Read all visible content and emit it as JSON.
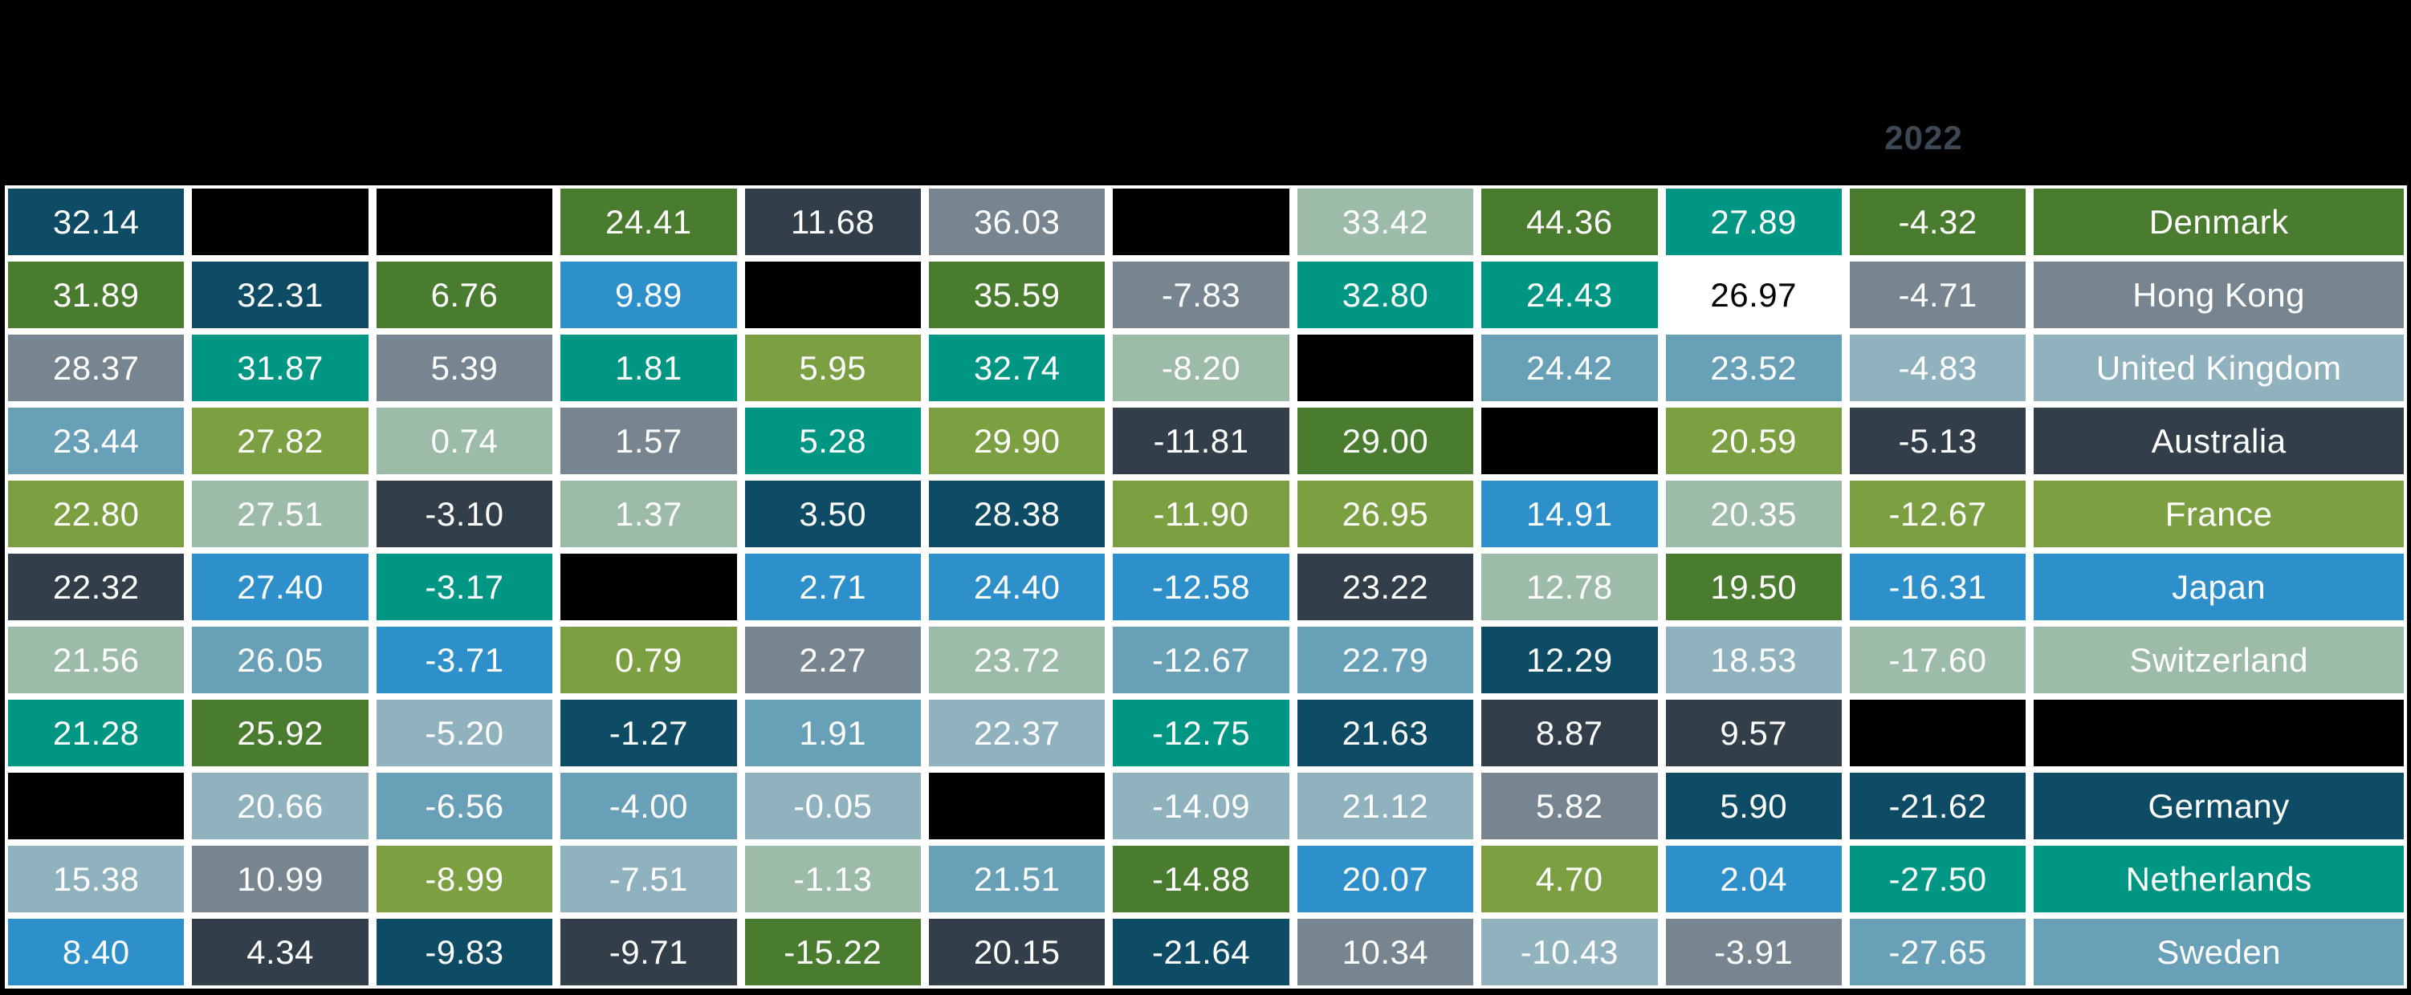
{
  "chart_data": {
    "type": "heatmap",
    "column_headers": [
      "",
      "",
      "",
      "",
      "",
      "",
      "",
      "",
      "",
      "",
      "2022"
    ],
    "header_text_color": "#3D4855",
    "row_labels": [
      "Denmark",
      "Hong Kong",
      "United Kingdom",
      "Australia",
      "France",
      "Japan",
      "Switzerland",
      "",
      "Germany",
      "Netherlands",
      "Sweden"
    ],
    "values": [
      [
        "32.14",
        null,
        null,
        "24.41",
        "11.68",
        "36.03",
        null,
        "33.42",
        "44.36",
        "27.89",
        "-4.32"
      ],
      [
        "31.89",
        "32.31",
        "6.76",
        "9.89",
        null,
        "35.59",
        "-7.83",
        "32.80",
        "24.43",
        "26.97",
        "-4.71"
      ],
      [
        "28.37",
        "31.87",
        "5.39",
        "1.81",
        "5.95",
        "32.74",
        "-8.20",
        null,
        "24.42",
        "23.52",
        "-4.83"
      ],
      [
        "23.44",
        "27.82",
        "0.74",
        "1.57",
        "5.28",
        "29.90",
        "-11.81",
        "29.00",
        null,
        "20.59",
        "-5.13"
      ],
      [
        "22.80",
        "27.51",
        "-3.10",
        "1.37",
        "3.50",
        "28.38",
        "-11.90",
        "26.95",
        "14.91",
        "20.35",
        "-12.67"
      ],
      [
        "22.32",
        "27.40",
        "-3.17",
        null,
        "2.71",
        "24.40",
        "-12.58",
        "23.22",
        "12.78",
        "19.50",
        "-16.31"
      ],
      [
        "21.56",
        "26.05",
        "-3.71",
        "0.79",
        "2.27",
        "23.72",
        "-12.67",
        "22.79",
        "12.29",
        "18.53",
        "-17.60"
      ],
      [
        "21.28",
        "25.92",
        "-5.20",
        "-1.27",
        "1.91",
        "22.37",
        "-12.75",
        "21.63",
        "8.87",
        "9.57",
        null
      ],
      [
        null,
        "20.66",
        "-6.56",
        "-4.00",
        "-0.05",
        null,
        "-14.09",
        "21.12",
        "5.82",
        "5.90",
        "-21.62"
      ],
      [
        "15.38",
        "10.99",
        "-8.99",
        "-7.51",
        "-1.13",
        "21.51",
        "-14.88",
        "20.07",
        "4.70",
        "2.04",
        "-27.50"
      ],
      [
        "8.40",
        "4.34",
        "-9.83",
        "-9.71",
        "-15.22",
        "20.15",
        "-21.64",
        "10.34",
        "-10.43",
        "-3.91",
        "-27.65"
      ]
    ],
    "cell_colors": [
      [
        "petrol",
        "black",
        "black",
        "forest",
        "slate",
        "grayblue",
        "black",
        "sage",
        "forest",
        "teal",
        "forest"
      ],
      [
        "forest",
        "petrol",
        "forest",
        "blue",
        "black",
        "forest",
        "grayblue",
        "teal",
        "teal",
        "white",
        "grayblue"
      ],
      [
        "grayblue",
        "teal",
        "grayblue",
        "teal",
        "olive",
        "teal",
        "sage",
        "black",
        "steel",
        "steel",
        "lightsteel"
      ],
      [
        "steel",
        "olive",
        "sage",
        "grayblue",
        "teal",
        "olive",
        "slate",
        "forest",
        "black",
        "olive",
        "slate"
      ],
      [
        "olive",
        "sage",
        "slate",
        "sage",
        "petrol",
        "petrol",
        "olive",
        "olive",
        "blue",
        "sage",
        "olive"
      ],
      [
        "slate",
        "blue",
        "teal",
        "black",
        "blue",
        "blue",
        "blue",
        "slate",
        "sage",
        "forest",
        "blue"
      ],
      [
        "sage",
        "steel",
        "blue",
        "olive",
        "grayblue",
        "sage",
        "steel",
        "steel",
        "petrol",
        "lightsteel",
        "sage"
      ],
      [
        "teal",
        "forest",
        "lightsteel",
        "petrol",
        "steel",
        "lightsteel",
        "teal",
        "petrol",
        "slate",
        "slate",
        "black"
      ],
      [
        "black",
        "lightsteel",
        "steel",
        "steel",
        "lightsteel",
        "black",
        "lightsteel",
        "lightsteel",
        "grayblue",
        "petrol",
        "petrol"
      ],
      [
        "lightsteel",
        "grayblue",
        "olive",
        "lightsteel",
        "sage",
        "steel",
        "forest",
        "blue",
        "olive",
        "blue",
        "teal"
      ],
      [
        "blue",
        "slate",
        "petrol",
        "slate",
        "forest",
        "slate",
        "petrol",
        "grayblue",
        "lightsteel",
        "grayblue",
        "steel"
      ]
    ],
    "row_label_colors": [
      "forest",
      "grayblue",
      "lightsteel",
      "slate",
      "olive",
      "blue",
      "sage",
      "black",
      "petrol",
      "teal",
      "steel"
    ],
    "palette": {
      "petrol": "#0E4C66",
      "forest": "#4A7C2F",
      "olive": "#7CA041",
      "teal": "#009684",
      "blue": "#2E90CB",
      "steel": "#68A0B8",
      "lightsteel": "#8FB2BE",
      "sage": "#9CBBA9",
      "grayblue": "#76858F",
      "slate": "#323E49",
      "white": "#FFFFFF",
      "black": "#000000"
    },
    "white_cell_text_color": "#000000",
    "default_cell_text_color": "#FFFFFF",
    "grid_line_color": "#FFFFFF",
    "background_color": "#000000"
  }
}
